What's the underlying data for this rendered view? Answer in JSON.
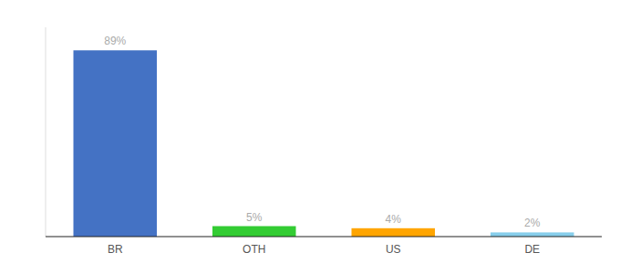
{
  "chart_data": {
    "type": "bar",
    "categories": [
      "BR",
      "OTH",
      "US",
      "DE"
    ],
    "values": [
      89,
      5,
      4,
      2
    ],
    "value_labels": [
      "89%",
      "5%",
      "4%",
      "2%"
    ],
    "colors": [
      "#4472C4",
      "#33CC33",
      "#FFA500",
      "#87CEEB"
    ],
    "ylim": [
      0,
      100
    ],
    "data_labels": true,
    "tick_labels": "x",
    "grid": false
  }
}
